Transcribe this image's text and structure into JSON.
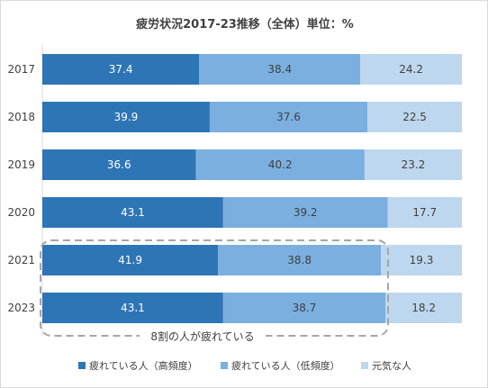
{
  "colors": {
    "tired_high": "#2e75b6",
    "tired_low": "#7aafe0",
    "healthy": "#bdd7ee",
    "callout_border": "#a6a6a6",
    "text_dark": "#404040",
    "axis_line": "#d9d9d9"
  },
  "chart_data": {
    "type": "bar",
    "orientation": "horizontal",
    "stacked": "100%",
    "title": "疲労状況2017-23推移（全体）単位：%",
    "categories": [
      "2017",
      "2018",
      "2019",
      "2020",
      "2021",
      "2023"
    ],
    "series": [
      {
        "name": "疲れている人（高頻度）",
        "values": [
          37.4,
          39.9,
          36.6,
          43.1,
          41.9,
          43.1
        ]
      },
      {
        "name": "疲れている人（低頻度）",
        "values": [
          38.4,
          37.6,
          40.2,
          39.2,
          38.8,
          38.7
        ]
      },
      {
        "name": "元気な人",
        "values": [
          24.2,
          22.5,
          23.2,
          17.7,
          19.3,
          18.2
        ]
      }
    ],
    "data_labels": true,
    "legend_position": "bottom",
    "grid": false,
    "annotation": {
      "text": "8割の人が疲れている",
      "target_categories": [
        "2021",
        "2023"
      ],
      "target_series": [
        "疲れている人（高頻度）",
        "疲れている人（低頻度）"
      ],
      "style": "dashed-rounded-box"
    }
  }
}
